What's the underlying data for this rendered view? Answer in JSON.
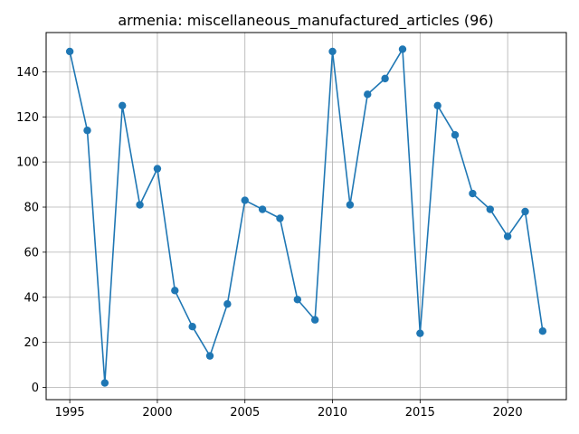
{
  "chart_data": {
    "type": "line",
    "title": "armenia: miscellaneous_manufactured_articles (96)",
    "xlabel": "",
    "ylabel": "",
    "x": [
      1995,
      1996,
      1997,
      1998,
      1999,
      2000,
      2001,
      2002,
      2003,
      2004,
      2005,
      2006,
      2007,
      2008,
      2009,
      2010,
      2011,
      2012,
      2013,
      2014,
      2015,
      2016,
      2017,
      2018,
      2019,
      2020,
      2021,
      2022
    ],
    "series": [
      {
        "values": [
          149,
          114,
          2,
          125,
          81,
          97,
          43,
          27,
          14,
          37,
          83,
          79,
          75,
          39,
          30,
          149,
          81,
          130,
          137,
          150,
          24,
          125,
          112,
          86,
          79,
          67,
          78,
          25
        ]
      }
    ],
    "xlim": [
      1993.65,
      2023.35
    ],
    "ylim": [
      -5.4,
      157.4
    ],
    "xticks": [
      1995,
      2000,
      2005,
      2010,
      2015,
      2020
    ],
    "yticks": [
      0,
      20,
      40,
      60,
      80,
      100,
      120,
      140
    ],
    "grid": true,
    "legend": "none",
    "colors": {
      "line": "#1f77b4",
      "marker": "#1f77b4",
      "grid": "#b0b0b0",
      "axes": "#000000"
    }
  }
}
